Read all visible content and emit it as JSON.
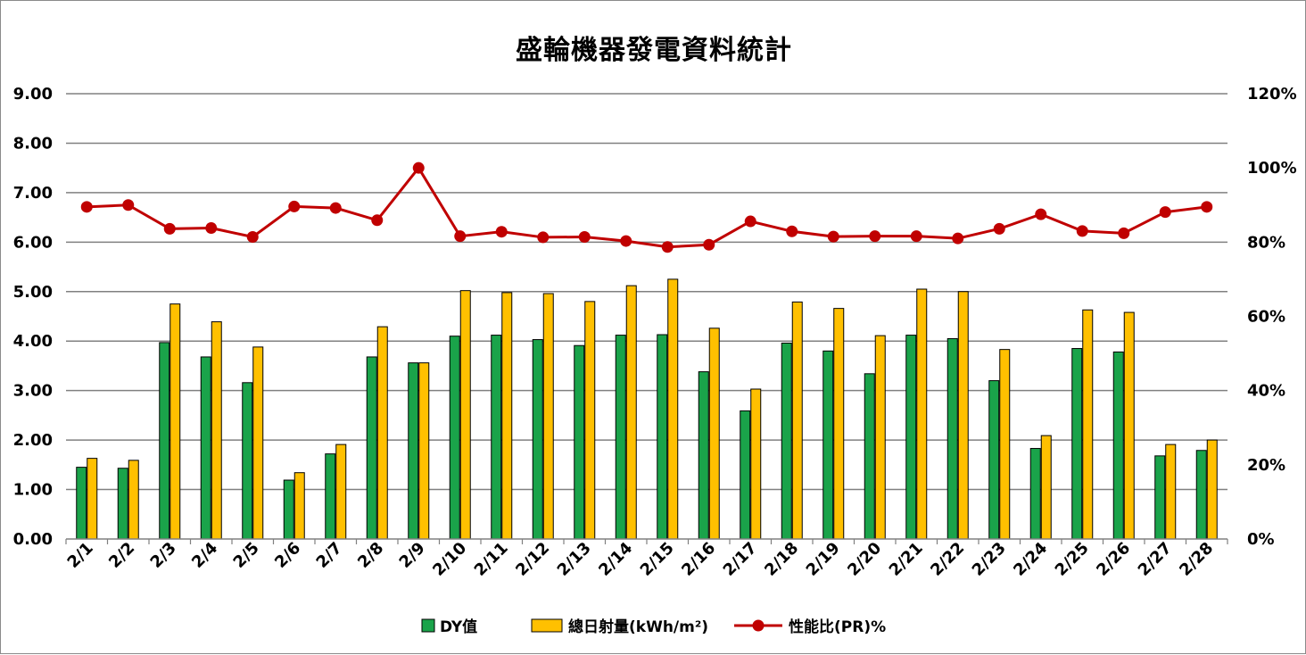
{
  "chart_data": {
    "type": "bar",
    "title": "盛輪機器發電資料統計",
    "categories": [
      "2/1",
      "2/2",
      "2/3",
      "2/4",
      "2/5",
      "2/6",
      "2/7",
      "2/8",
      "2/9",
      "2/10",
      "2/11",
      "2/12",
      "2/13",
      "2/14",
      "2/15",
      "2/16",
      "2/17",
      "2/18",
      "2/19",
      "2/20",
      "2/21",
      "2/22",
      "2/23",
      "2/24",
      "2/25",
      "2/26",
      "2/27",
      "2/28"
    ],
    "series": [
      {
        "name": "DY值",
        "type": "bar",
        "axis": "left",
        "color": "#1aa34a",
        "values": [
          1.45,
          1.43,
          3.97,
          3.68,
          3.16,
          1.19,
          1.72,
          3.68,
          3.56,
          4.1,
          4.12,
          4.03,
          3.91,
          4.12,
          4.13,
          3.38,
          2.59,
          3.96,
          3.8,
          3.34,
          4.12,
          4.05,
          3.2,
          1.83,
          3.85,
          3.78,
          1.68,
          1.79
        ]
      },
      {
        "name": "總日射量(kWh/m²)",
        "type": "bar",
        "axis": "left",
        "color": "#ffc000",
        "values": [
          1.63,
          1.59,
          4.75,
          4.39,
          3.88,
          1.34,
          1.91,
          4.29,
          3.56,
          5.02,
          4.98,
          4.96,
          4.8,
          5.12,
          5.25,
          4.26,
          3.03,
          4.79,
          4.66,
          4.11,
          5.05,
          5.0,
          3.83,
          2.09,
          4.63,
          4.58,
          1.91,
          2.0
        ]
      },
      {
        "name": "性能比(PR)%",
        "type": "line",
        "axis": "right",
        "color": "#c00000",
        "values": [
          89.5,
          90.0,
          83.6,
          83.8,
          81.4,
          89.6,
          89.2,
          85.9,
          100.0,
          81.6,
          82.8,
          81.3,
          81.4,
          80.3,
          78.7,
          79.3,
          85.6,
          82.9,
          81.5,
          81.6,
          81.6,
          81.0,
          83.6,
          87.5,
          83.0,
          82.4,
          88.1,
          89.5
        ]
      }
    ],
    "y_left": {
      "ylim": [
        0,
        9
      ],
      "ticks": [
        "0.00",
        "1.00",
        "2.00",
        "3.00",
        "4.00",
        "5.00",
        "6.00",
        "7.00",
        "8.00",
        "9.00"
      ]
    },
    "y_right": {
      "ylim": [
        0,
        120
      ],
      "ticks": [
        "0%",
        "20%",
        "40%",
        "60%",
        "80%",
        "100%",
        "120%"
      ]
    },
    "grid": true,
    "legend_position": "bottom"
  }
}
